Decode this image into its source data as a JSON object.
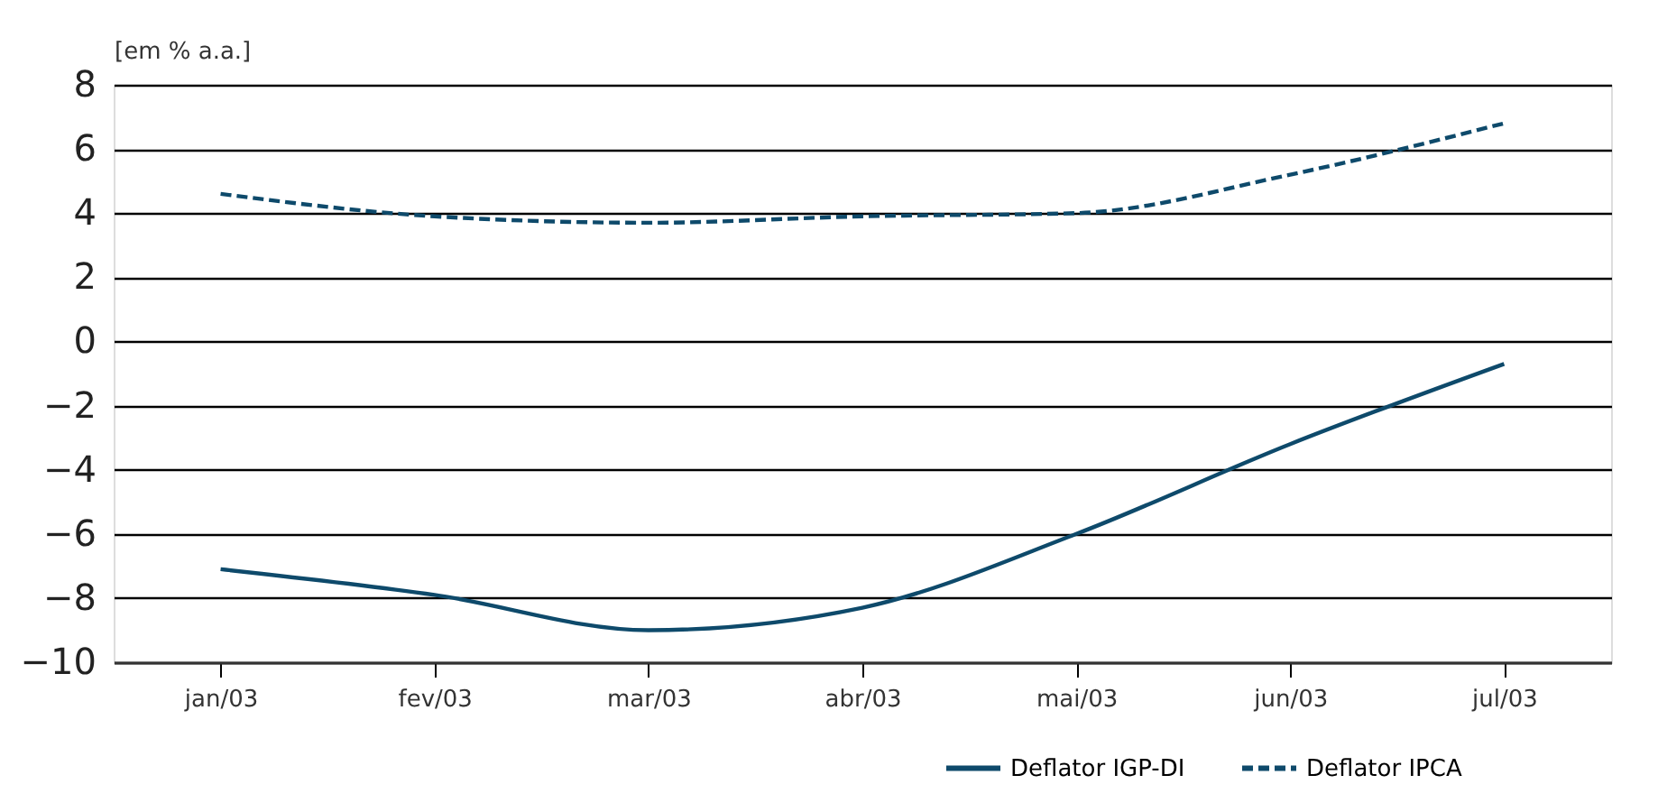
{
  "chart_data": {
    "type": "line",
    "ylabel": "[em % a.a.]",
    "categories": [
      "jan/03",
      "fev/03",
      "mar/03",
      "abr/03",
      "mai/03",
      "jun/03",
      "jul/03"
    ],
    "series": [
      {
        "name": "Deflator IGP-DI",
        "color": "#0e4a6b",
        "line_style": "solid",
        "values": [
          -7.1,
          -7.9,
          -9.0,
          -8.3,
          -6.0,
          -3.2,
          -0.7
        ]
      },
      {
        "name": "Deflator IPCA",
        "color": "#0e4a6b",
        "line_style": "dashed",
        "values": [
          4.6,
          3.9,
          3.7,
          3.9,
          4.0,
          5.2,
          6.8
        ]
      }
    ],
    "ylim": [
      -10,
      8
    ],
    "yticks": [
      -10,
      -8,
      -6,
      -4,
      -2,
      0,
      2,
      4,
      6,
      8
    ],
    "grid": "y",
    "legend": "bottom right",
    "marker": "none"
  }
}
